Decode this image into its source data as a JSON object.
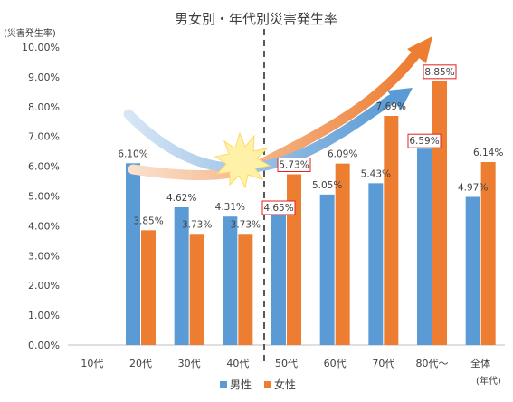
{
  "chart_data": {
    "type": "bar",
    "title": "男女別・年代別災害発生率",
    "ylabel": "(災害発生率)",
    "xlabel": "(年代)",
    "ylim": [
      0,
      10
    ],
    "y_ticks": [
      "0.00%",
      "1.00%",
      "2.00%",
      "3.00%",
      "4.00%",
      "5.00%",
      "6.00%",
      "7.00%",
      "8.00%",
      "9.00%",
      "10.00%"
    ],
    "categories": [
      "10代",
      "20代",
      "30代",
      "40代",
      "50代",
      "60代",
      "70代",
      "80代～",
      "全体"
    ],
    "series": [
      {
        "name": "男性",
        "color": "#5b9bd5",
        "values": [
          null,
          6.1,
          4.62,
          4.31,
          4.65,
          5.05,
          5.43,
          6.59,
          4.97
        ],
        "labels": [
          "",
          "6.10%",
          "4.62%",
          "4.31%",
          "4.65%",
          "5.05%",
          "5.43%",
          "6.59%",
          "4.97%"
        ]
      },
      {
        "name": "女性",
        "color": "#ed7d31",
        "values": [
          null,
          3.85,
          3.73,
          3.73,
          5.73,
          6.09,
          7.69,
          8.85,
          6.14
        ],
        "labels": [
          "",
          "3.85%",
          "3.73%",
          "3.73%",
          "5.73%",
          "6.09%",
          "7.69%",
          "8.85%",
          "6.14%"
        ]
      }
    ],
    "boxed_labels": [
      "4.65%",
      "5.73%",
      "6.59%",
      "8.85%"
    ],
    "divider_between": [
      "40代",
      "50代"
    ],
    "legend_position": "bottom",
    "grid": false
  }
}
